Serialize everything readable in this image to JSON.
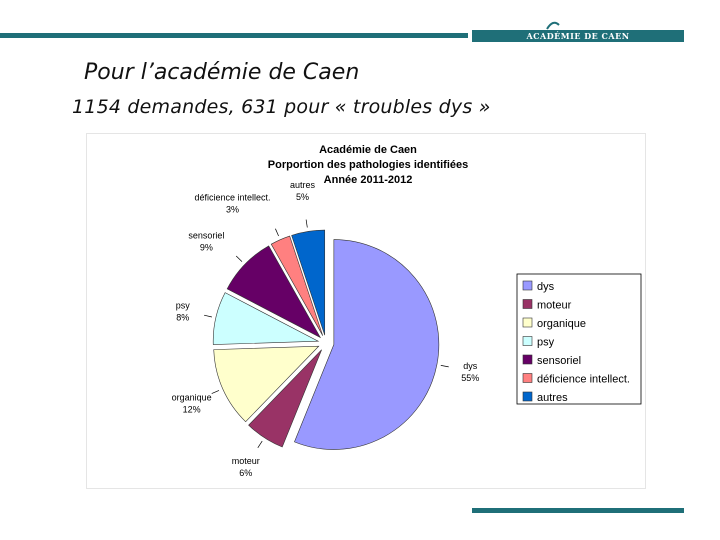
{
  "header": {
    "brand": "ACADÉMIE DE CAEN",
    "accent_color": "#1f6f78"
  },
  "slide": {
    "title": "Pour l’académie de Caen",
    "subtitle": "1154 demandes,  631  pour « troubles dys »"
  },
  "chart_data": {
    "type": "pie",
    "title": [
      "Académie de Caen",
      "Porportion des pathologies identifiées",
      "Année 2011-2012"
    ],
    "categories": [
      "dys",
      "moteur",
      "organique",
      "psy",
      "sensoriel",
      "déficience intellect.",
      "autres"
    ],
    "values": [
      55,
      6,
      12,
      8,
      9,
      3,
      5
    ],
    "value_labels": [
      "55%",
      "6%",
      "12%",
      "8%",
      "9%",
      "3%",
      "5%"
    ],
    "slice_labels": [
      "dys",
      "moteur",
      "organique",
      "psy",
      "sensoriel",
      "déficience intellect.",
      "autres"
    ],
    "colors": [
      "#9999ff",
      "#993366",
      "#ffffcc",
      "#ccffff",
      "#660066",
      "#ff8080",
      "#0066cc"
    ],
    "legend": "right"
  }
}
